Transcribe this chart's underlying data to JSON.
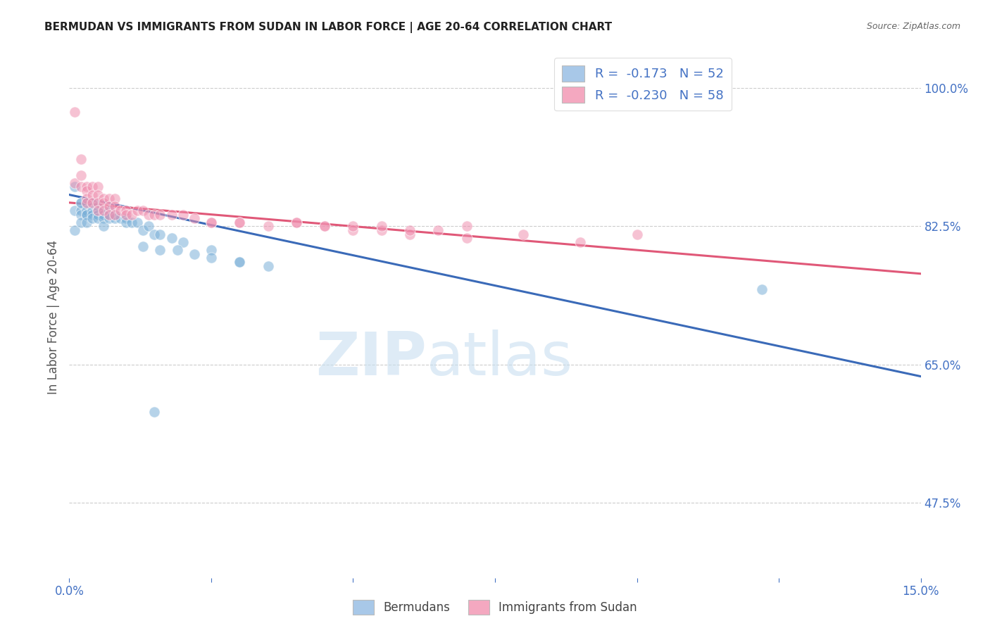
{
  "title": "BERMUDAN VS IMMIGRANTS FROM SUDAN IN LABOR FORCE | AGE 20-64 CORRELATION CHART",
  "source": "Source: ZipAtlas.com",
  "ylabel": "In Labor Force | Age 20-64",
  "yticks": [
    0.475,
    0.65,
    0.825,
    1.0
  ],
  "ytick_labels": [
    "47.5%",
    "65.0%",
    "82.5%",
    "100.0%"
  ],
  "xlim": [
    0.0,
    0.15
  ],
  "ylim": [
    0.38,
    1.04
  ],
  "legend_label1": "R =  -0.173   N = 52",
  "legend_label2": "R =  -0.230   N = 58",
  "legend_color1": "#a8c8e8",
  "legend_color2": "#f4a8c0",
  "scatter_color1": "#7ab0d8",
  "scatter_color2": "#f090b0",
  "line_color1": "#3a6ab8",
  "line_color2": "#e05878",
  "background_color": "#ffffff",
  "title_color": "#222222",
  "axis_color": "#4472c4",
  "grid_color": "#cccccc",
  "reg_line1_x": [
    0.0,
    0.15
  ],
  "reg_line1_y": [
    0.865,
    0.635
  ],
  "reg_line2_x": [
    0.0,
    0.15
  ],
  "reg_line2_y": [
    0.855,
    0.765
  ],
  "bermudans_x": [
    0.001,
    0.001,
    0.001,
    0.002,
    0.002,
    0.002,
    0.002,
    0.002,
    0.003,
    0.003,
    0.003,
    0.003,
    0.003,
    0.004,
    0.004,
    0.004,
    0.004,
    0.005,
    0.005,
    0.005,
    0.005,
    0.006,
    0.006,
    0.006,
    0.006,
    0.007,
    0.007,
    0.007,
    0.008,
    0.008,
    0.009,
    0.01,
    0.01,
    0.011,
    0.012,
    0.013,
    0.014,
    0.015,
    0.016,
    0.018,
    0.02,
    0.025,
    0.03,
    0.035,
    0.013,
    0.016,
    0.019,
    0.022,
    0.025,
    0.03,
    0.122,
    0.015
  ],
  "bermudans_y": [
    0.875,
    0.845,
    0.82,
    0.855,
    0.845,
    0.855,
    0.84,
    0.83,
    0.855,
    0.845,
    0.84,
    0.84,
    0.83,
    0.855,
    0.845,
    0.84,
    0.835,
    0.85,
    0.845,
    0.84,
    0.835,
    0.845,
    0.84,
    0.835,
    0.825,
    0.845,
    0.84,
    0.835,
    0.84,
    0.835,
    0.835,
    0.835,
    0.83,
    0.83,
    0.83,
    0.82,
    0.825,
    0.815,
    0.815,
    0.81,
    0.805,
    0.795,
    0.78,
    0.775,
    0.8,
    0.795,
    0.795,
    0.79,
    0.785,
    0.78,
    0.745,
    0.59
  ],
  "sudan_x": [
    0.001,
    0.001,
    0.002,
    0.002,
    0.002,
    0.003,
    0.003,
    0.003,
    0.003,
    0.004,
    0.004,
    0.004,
    0.005,
    0.005,
    0.005,
    0.005,
    0.006,
    0.006,
    0.006,
    0.007,
    0.007,
    0.007,
    0.008,
    0.008,
    0.008,
    0.009,
    0.01,
    0.01,
    0.011,
    0.012,
    0.013,
    0.014,
    0.015,
    0.016,
    0.018,
    0.02,
    0.022,
    0.025,
    0.03,
    0.035,
    0.04,
    0.045,
    0.05,
    0.055,
    0.06,
    0.07,
    0.08,
    0.09,
    0.1,
    0.025,
    0.03,
    0.04,
    0.045,
    0.05,
    0.055,
    0.06,
    0.065,
    0.07
  ],
  "sudan_y": [
    0.97,
    0.88,
    0.91,
    0.89,
    0.875,
    0.875,
    0.87,
    0.86,
    0.855,
    0.875,
    0.865,
    0.855,
    0.875,
    0.865,
    0.855,
    0.845,
    0.86,
    0.855,
    0.845,
    0.86,
    0.85,
    0.84,
    0.86,
    0.85,
    0.84,
    0.845,
    0.845,
    0.84,
    0.84,
    0.845,
    0.845,
    0.84,
    0.84,
    0.84,
    0.84,
    0.84,
    0.835,
    0.83,
    0.83,
    0.825,
    0.83,
    0.825,
    0.82,
    0.82,
    0.815,
    0.81,
    0.815,
    0.805,
    0.815,
    0.83,
    0.83,
    0.83,
    0.825,
    0.825,
    0.825,
    0.82,
    0.82,
    0.825
  ]
}
